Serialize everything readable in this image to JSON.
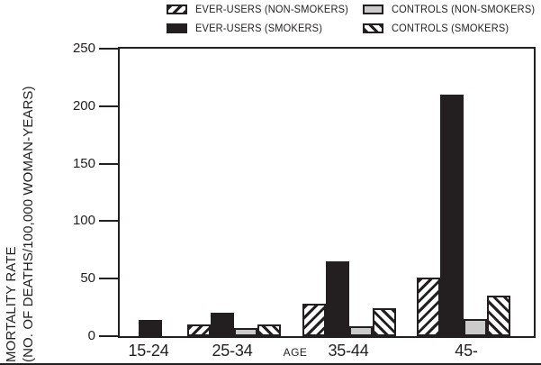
{
  "legend": [
    {
      "label": "EVER-USERS (NON-SMOKERS)",
      "pattern": "hatch-forward"
    },
    {
      "label": "CONTROLS (NON-SMOKERS)",
      "pattern": "solid-gray"
    },
    {
      "label": "EVER-USERS (SMOKERS)",
      "pattern": "solid-black"
    },
    {
      "label": "CONTROLS (SMOKERS)",
      "pattern": "hatch-back"
    }
  ],
  "chart_data": {
    "type": "bar",
    "title": "",
    "ylabel_line1": "MORTALITY RATE",
    "ylabel_line2": "(NO. OF DEATHS/100,000 WOMAN-YEARS)",
    "xlabel": "AGE",
    "categories": [
      "15-24",
      "25-34",
      "35-44",
      "45-"
    ],
    "yticks": [
      0,
      50,
      100,
      150,
      200,
      250
    ],
    "ylim": [
      0,
      250
    ],
    "grid": false,
    "legend_position": "top",
    "series": [
      {
        "name": "EVER-USERS (NON-SMOKERS)",
        "pattern": "hatch-forward",
        "values": [
          0,
          10,
          28,
          51
        ]
      },
      {
        "name": "EVER-USERS (SMOKERS)",
        "pattern": "solid-black",
        "values": [
          14,
          20,
          65,
          210
        ]
      },
      {
        "name": "CONTROLS (NON-SMOKERS)",
        "pattern": "solid-gray",
        "values": [
          0,
          7,
          9,
          15
        ]
      },
      {
        "name": "CONTROLS (SMOKERS)",
        "pattern": "hatch-back",
        "values": [
          0,
          10,
          24,
          35
        ]
      }
    ]
  },
  "colors": {
    "ink": "#231f20",
    "gray_fill": "#cbcbcb",
    "background": "#ffffff"
  }
}
